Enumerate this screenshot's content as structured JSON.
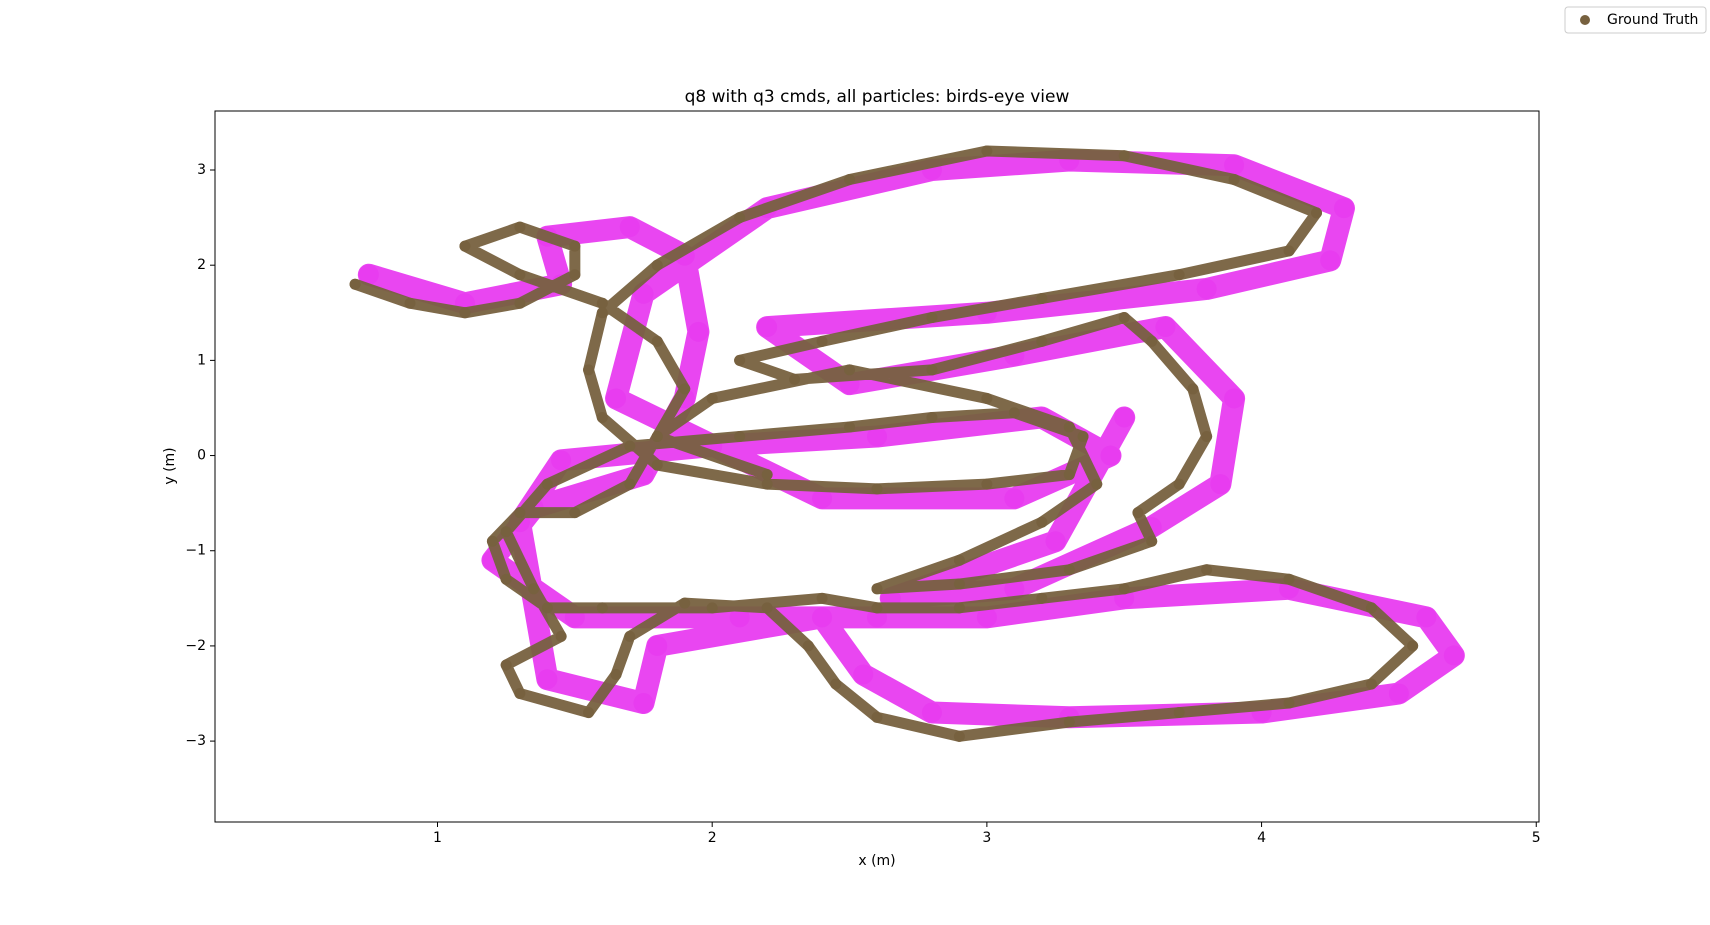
{
  "chart_data": {
    "type": "scatter",
    "title": "q8 with q3 cmds, all particles: birds-eye view",
    "x_label": "x (m)",
    "y_label": "y (m)",
    "xlim": [
      0.19,
      5.01
    ],
    "ylim": [
      -3.85,
      3.62
    ],
    "xticks": [
      1,
      2,
      3,
      4,
      5
    ],
    "yticks": [
      {
        "value": -3,
        "label": "−3"
      },
      {
        "value": -2,
        "label": "−2"
      },
      {
        "value": -1,
        "label": "−1"
      },
      0,
      1,
      2,
      3
    ],
    "legend": "upper right",
    "series": [
      {
        "color": "#e83cf0",
        "x": [
          0.75,
          1.1,
          1.45,
          1.4,
          1.7,
          1.9,
          1.95,
          1.9,
          1.75,
          1.35,
          1.2,
          1.5,
          2.1,
          2.6,
          3.0,
          3.5,
          4.1,
          4.6,
          4.7,
          4.5,
          4.0,
          3.3,
          2.8,
          2.55,
          2.4,
          1.8,
          1.75,
          1.4,
          1.3,
          1.45,
          2.0,
          2.6,
          3.2,
          3.45,
          3.1,
          2.4,
          1.65,
          1.75,
          2.2,
          2.8,
          3.3,
          3.9,
          4.3,
          4.25,
          3.8,
          3.0,
          2.2,
          2.5,
          3.1,
          3.65,
          3.9,
          3.85,
          3.6,
          3.1,
          2.65,
          3.25,
          3.5
        ],
        "y": [
          1.9,
          1.6,
          1.8,
          2.3,
          2.4,
          2.1,
          1.3,
          0.6,
          -0.2,
          -0.55,
          -1.1,
          -1.7,
          -1.7,
          -1.7,
          -1.7,
          -1.5,
          -1.4,
          -1.7,
          -2.1,
          -2.5,
          -2.7,
          -2.75,
          -2.7,
          -2.3,
          -1.7,
          -2.0,
          -2.6,
          -2.35,
          -0.7,
          -0.05,
          0.1,
          0.2,
          0.4,
          0.0,
          -0.45,
          -0.45,
          0.6,
          1.7,
          2.6,
          3.0,
          3.1,
          3.05,
          2.6,
          2.05,
          1.75,
          1.5,
          1.35,
          0.75,
          1.05,
          1.35,
          0.6,
          -0.3,
          -0.75,
          -1.4,
          -1.5,
          -0.9,
          0.4
        ]
      },
      {
        "name": "Ground Truth",
        "color": "#77613f",
        "x": [
          0.7,
          0.9,
          1.1,
          1.3,
          1.5,
          1.5,
          1.3,
          1.1,
          1.3,
          1.6,
          1.8,
          1.9,
          1.8,
          1.7,
          1.5,
          1.3,
          1.2,
          1.25,
          1.4,
          1.6,
          2.0,
          2.4,
          2.6,
          2.9,
          3.2,
          3.5,
          3.8,
          4.1,
          4.4,
          4.55,
          4.4,
          4.1,
          3.7,
          3.3,
          2.9,
          2.6,
          2.45,
          2.35,
          2.2,
          1.9,
          1.7,
          1.65,
          1.55,
          1.3,
          1.25,
          1.45,
          1.35,
          1.25,
          1.4,
          1.7,
          2.1,
          2.5,
          2.8,
          3.1,
          3.35,
          3.3,
          3.0,
          2.6,
          2.2,
          1.8,
          1.6,
          1.55,
          1.6,
          1.8,
          2.1,
          2.5,
          3.0,
          3.5,
          3.9,
          4.2,
          4.1,
          3.7,
          3.2,
          2.8,
          2.4,
          2.1,
          2.3,
          2.8,
          3.2,
          3.5,
          3.6,
          3.75,
          3.8,
          3.7,
          3.55,
          3.6,
          3.3,
          2.9,
          2.6,
          2.9,
          3.2,
          3.4,
          3.3,
          3.0,
          2.5,
          2.0,
          1.8,
          2.2
        ],
        "y": [
          1.8,
          1.6,
          1.5,
          1.6,
          1.9,
          2.2,
          2.4,
          2.2,
          1.9,
          1.6,
          1.2,
          0.7,
          0.2,
          -0.3,
          -0.6,
          -0.6,
          -0.9,
          -1.3,
          -1.6,
          -1.6,
          -1.6,
          -1.5,
          -1.6,
          -1.6,
          -1.5,
          -1.4,
          -1.2,
          -1.3,
          -1.6,
          -2.0,
          -2.4,
          -2.6,
          -2.7,
          -2.8,
          -2.95,
          -2.75,
          -2.4,
          -2.0,
          -1.6,
          -1.55,
          -1.9,
          -2.3,
          -2.7,
          -2.5,
          -2.2,
          -1.9,
          -1.4,
          -0.8,
          -0.3,
          0.1,
          0.2,
          0.3,
          0.4,
          0.45,
          0.2,
          -0.2,
          -0.3,
          -0.35,
          -0.3,
          -0.1,
          0.4,
          0.9,
          1.5,
          2.0,
          2.5,
          2.9,
          3.2,
          3.15,
          2.9,
          2.55,
          2.15,
          1.9,
          1.65,
          1.45,
          1.2,
          1.0,
          0.8,
          0.9,
          1.2,
          1.45,
          1.2,
          0.7,
          0.2,
          -0.3,
          -0.6,
          -0.9,
          -1.2,
          -1.35,
          -1.4,
          -1.1,
          -0.7,
          -0.3,
          0.3,
          0.6,
          0.9,
          0.6,
          0.2,
          -0.2
        ]
      }
    ]
  }
}
